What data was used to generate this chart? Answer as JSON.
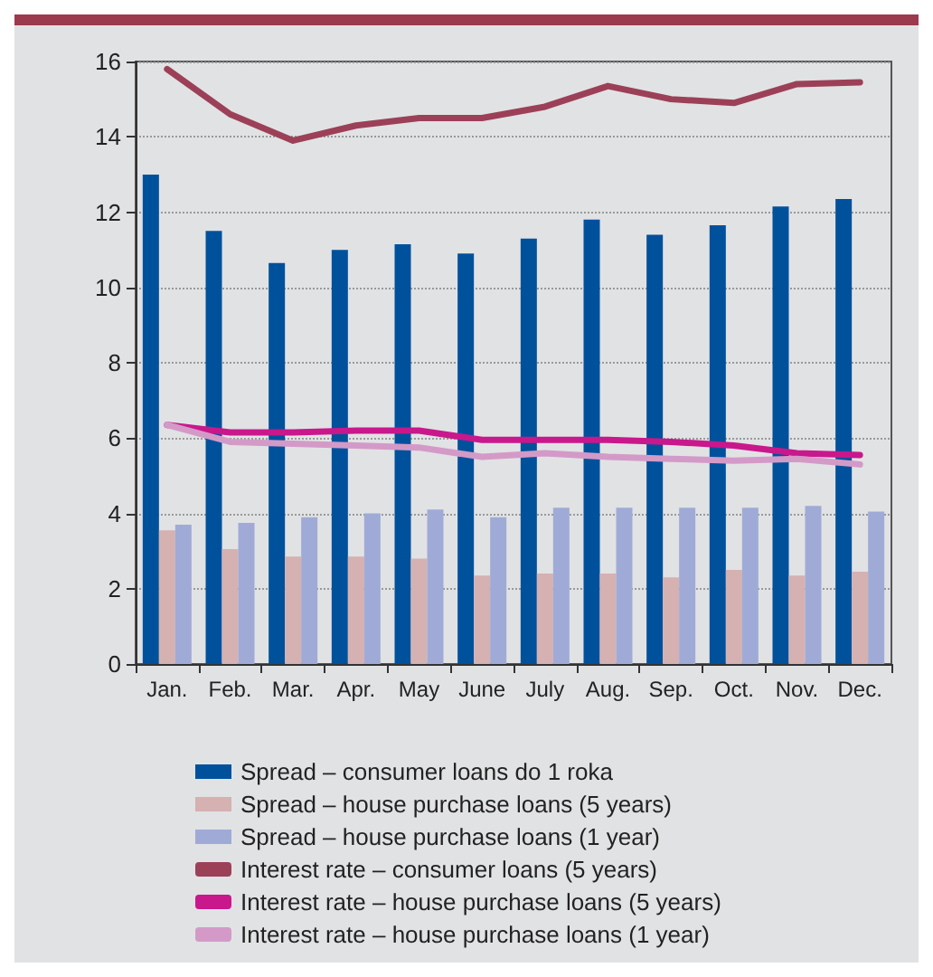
{
  "chart_data": {
    "type": "bar",
    "categories": [
      "Jan.",
      "Feb.",
      "Mar.",
      "Apr.",
      "May",
      "June",
      "July",
      "Aug.",
      "Sep.",
      "Oct.",
      "Nov.",
      "Dec."
    ],
    "ylim": [
      0,
      16
    ],
    "yticks": [
      0,
      2,
      4,
      6,
      8,
      10,
      12,
      14,
      16
    ],
    "grid": "y",
    "legend": "bottom",
    "marker": "none",
    "series": [
      {
        "name": "Spread – consumer loans do 1 roka",
        "color": "#00519c",
        "values": [
          13.0,
          11.5,
          10.65,
          11.0,
          11.15,
          10.9,
          11.3,
          11.8,
          11.4,
          11.65,
          12.15,
          12.35
        ]
      },
      {
        "name": "Spread – house purchase loans (5 years)",
        "color": "#d5b1b1",
        "values": [
          3.55,
          3.05,
          2.85,
          2.85,
          2.8,
          2.35,
          2.4,
          2.4,
          2.3,
          2.5,
          2.35,
          2.45
        ]
      },
      {
        "name": "Spread – house purchase loans (1 year)",
        "color": "#9fabd6",
        "values": [
          3.7,
          3.75,
          3.9,
          4.0,
          4.1,
          3.9,
          4.15,
          4.15,
          4.15,
          4.15,
          4.2,
          4.05
        ]
      },
      {
        "name": "Interest rate – consumer loans (5 years)",
        "type": "line",
        "color": "#9c4058",
        "values": [
          15.8,
          14.6,
          13.9,
          14.3,
          14.5,
          14.5,
          14.8,
          15.35,
          15.0,
          14.9,
          15.4,
          15.45
        ]
      },
      {
        "name": "Interest rate – house purchase loans (5 years)",
        "type": "line",
        "color": "#c8188c",
        "values": [
          6.35,
          6.15,
          6.15,
          6.2,
          6.2,
          5.95,
          5.95,
          5.95,
          5.9,
          5.8,
          5.6,
          5.55
        ]
      },
      {
        "name": "Interest rate – house purchase loans (1 year)",
        "type": "line",
        "color": "#d39ac8",
        "values": [
          6.35,
          5.9,
          5.85,
          5.8,
          5.75,
          5.5,
          5.6,
          5.5,
          5.45,
          5.4,
          5.45,
          5.3
        ]
      }
    ]
  }
}
